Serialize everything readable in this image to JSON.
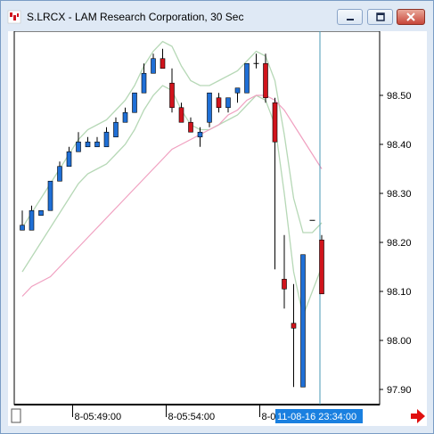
{
  "window": {
    "title": "S.LRCX - LAM Research Corporation, 30 Sec",
    "icon": "chart-app-icon",
    "controls": [
      "minimize-icon",
      "maximize-icon",
      "close-icon"
    ]
  },
  "colors": {
    "up": "#1f6fd6",
    "down": "#d0141c",
    "envelope": "#b6d8b6",
    "moving_average": "#f0a0c0",
    "cursor_line": "#4a9ab5",
    "time_highlight": "#1a80e0",
    "scroll_arrow": "#e01010"
  },
  "chart_data": {
    "type": "candlestick",
    "ylim": [
      97.88,
      98.62
    ],
    "price_ticks": [
      "98.50",
      "98.40",
      "98.30",
      "98.20",
      "98.10",
      "98.00",
      "97.90"
    ],
    "time_ticks": [
      "8-05:49:00",
      "8-05:54:00",
      "8-05:59:00"
    ],
    "time_tick_bars": [
      5,
      15,
      25
    ],
    "time_readout": "11-08-16 23:34:00",
    "candles": [
      {
        "o": 98.225,
        "h": 98.265,
        "l": 98.225,
        "c": 98.235
      },
      {
        "o": 98.225,
        "h": 98.275,
        "l": 98.225,
        "c": 98.265
      },
      {
        "o": 98.255,
        "h": 98.265,
        "l": 98.255,
        "c": 98.265
      },
      {
        "o": 98.265,
        "h": 98.325,
        "l": 98.265,
        "c": 98.325
      },
      {
        "o": 98.325,
        "h": 98.365,
        "l": 98.325,
        "c": 98.355
      },
      {
        "o": 98.355,
        "h": 98.395,
        "l": 98.355,
        "c": 98.385
      },
      {
        "o": 98.385,
        "h": 98.425,
        "l": 98.385,
        "c": 98.405
      },
      {
        "o": 98.395,
        "h": 98.415,
        "l": 98.395,
        "c": 98.405
      },
      {
        "o": 98.395,
        "h": 98.415,
        "l": 98.395,
        "c": 98.405
      },
      {
        "o": 98.395,
        "h": 98.435,
        "l": 98.395,
        "c": 98.425
      },
      {
        "o": 98.415,
        "h": 98.455,
        "l": 98.415,
        "c": 98.445
      },
      {
        "o": 98.445,
        "h": 98.475,
        "l": 98.445,
        "c": 98.465
      },
      {
        "o": 98.465,
        "h": 98.505,
        "l": 98.465,
        "c": 98.505
      },
      {
        "o": 98.505,
        "h": 98.565,
        "l": 98.505,
        "c": 98.545
      },
      {
        "o": 98.545,
        "h": 98.585,
        "l": 98.545,
        "c": 98.575
      },
      {
        "o": 98.575,
        "h": 98.595,
        "l": 98.555,
        "c": 98.555
      },
      {
        "o": 98.525,
        "h": 98.555,
        "l": 98.465,
        "c": 98.475
      },
      {
        "o": 98.475,
        "h": 98.485,
        "l": 98.445,
        "c": 98.445
      },
      {
        "o": 98.445,
        "h": 98.455,
        "l": 98.425,
        "c": 98.425
      },
      {
        "o": 98.415,
        "h": 98.435,
        "l": 98.395,
        "c": 98.425
      },
      {
        "o": 98.445,
        "h": 98.505,
        "l": 98.435,
        "c": 98.505
      },
      {
        "o": 98.495,
        "h": 98.505,
        "l": 98.465,
        "c": 98.475
      },
      {
        "o": 98.475,
        "h": 98.495,
        "l": 98.465,
        "c": 98.495
      },
      {
        "o": 98.505,
        "h": 98.515,
        "l": 98.485,
        "c": 98.515
      },
      {
        "o": 98.505,
        "h": 98.565,
        "l": 98.505,
        "c": 98.565
      },
      {
        "o": 98.565,
        "h": 98.585,
        "l": 98.555,
        "c": 98.565
      },
      {
        "o": 98.565,
        "h": 98.585,
        "l": 98.485,
        "c": 98.495
      },
      {
        "o": 98.485,
        "h": 98.495,
        "l": 98.145,
        "c": 98.405
      },
      {
        "o": 98.125,
        "h": 98.215,
        "l": 98.065,
        "c": 98.105
      },
      {
        "o": 98.035,
        "h": 98.115,
        "l": 97.905,
        "c": 98.025
      },
      {
        "o": 97.905,
        "h": 98.175,
        "l": 97.905,
        "c": 98.175
      },
      {
        "o": 98.245,
        "h": 98.245,
        "l": 98.245,
        "c": 98.245
      },
      {
        "o": 98.205,
        "h": 98.215,
        "l": 98.095,
        "c": 98.095
      }
    ],
    "envelope_upper": [
      98.23,
      98.26,
      98.29,
      98.32,
      98.35,
      98.38,
      98.41,
      98.43,
      98.44,
      98.45,
      98.47,
      98.49,
      98.52,
      98.56,
      98.59,
      98.61,
      98.6,
      98.56,
      98.53,
      98.52,
      98.52,
      98.53,
      98.54,
      98.55,
      98.57,
      98.59,
      98.58,
      98.53,
      98.42,
      98.29,
      98.22,
      98.22,
      98.24
    ],
    "envelope_lower": [
      98.14,
      98.17,
      98.2,
      98.23,
      98.26,
      98.29,
      98.32,
      98.34,
      98.35,
      98.36,
      98.38,
      98.4,
      98.43,
      98.47,
      98.5,
      98.52,
      98.51,
      98.47,
      98.44,
      98.43,
      98.43,
      98.44,
      98.45,
      98.46,
      98.48,
      98.5,
      98.49,
      98.44,
      98.3,
      98.14,
      98.05,
      98.1,
      98.15
    ],
    "moving_average": [
      98.09,
      98.11,
      98.12,
      98.13,
      98.15,
      98.17,
      98.19,
      98.21,
      98.23,
      98.25,
      98.27,
      98.29,
      98.31,
      98.33,
      98.35,
      98.37,
      98.39,
      98.4,
      98.41,
      98.42,
      98.43,
      98.44,
      98.46,
      98.47,
      98.49,
      98.5,
      98.5,
      98.49,
      98.47,
      98.44,
      98.41,
      98.38,
      98.35
    ],
    "cursor_bar": 32
  }
}
